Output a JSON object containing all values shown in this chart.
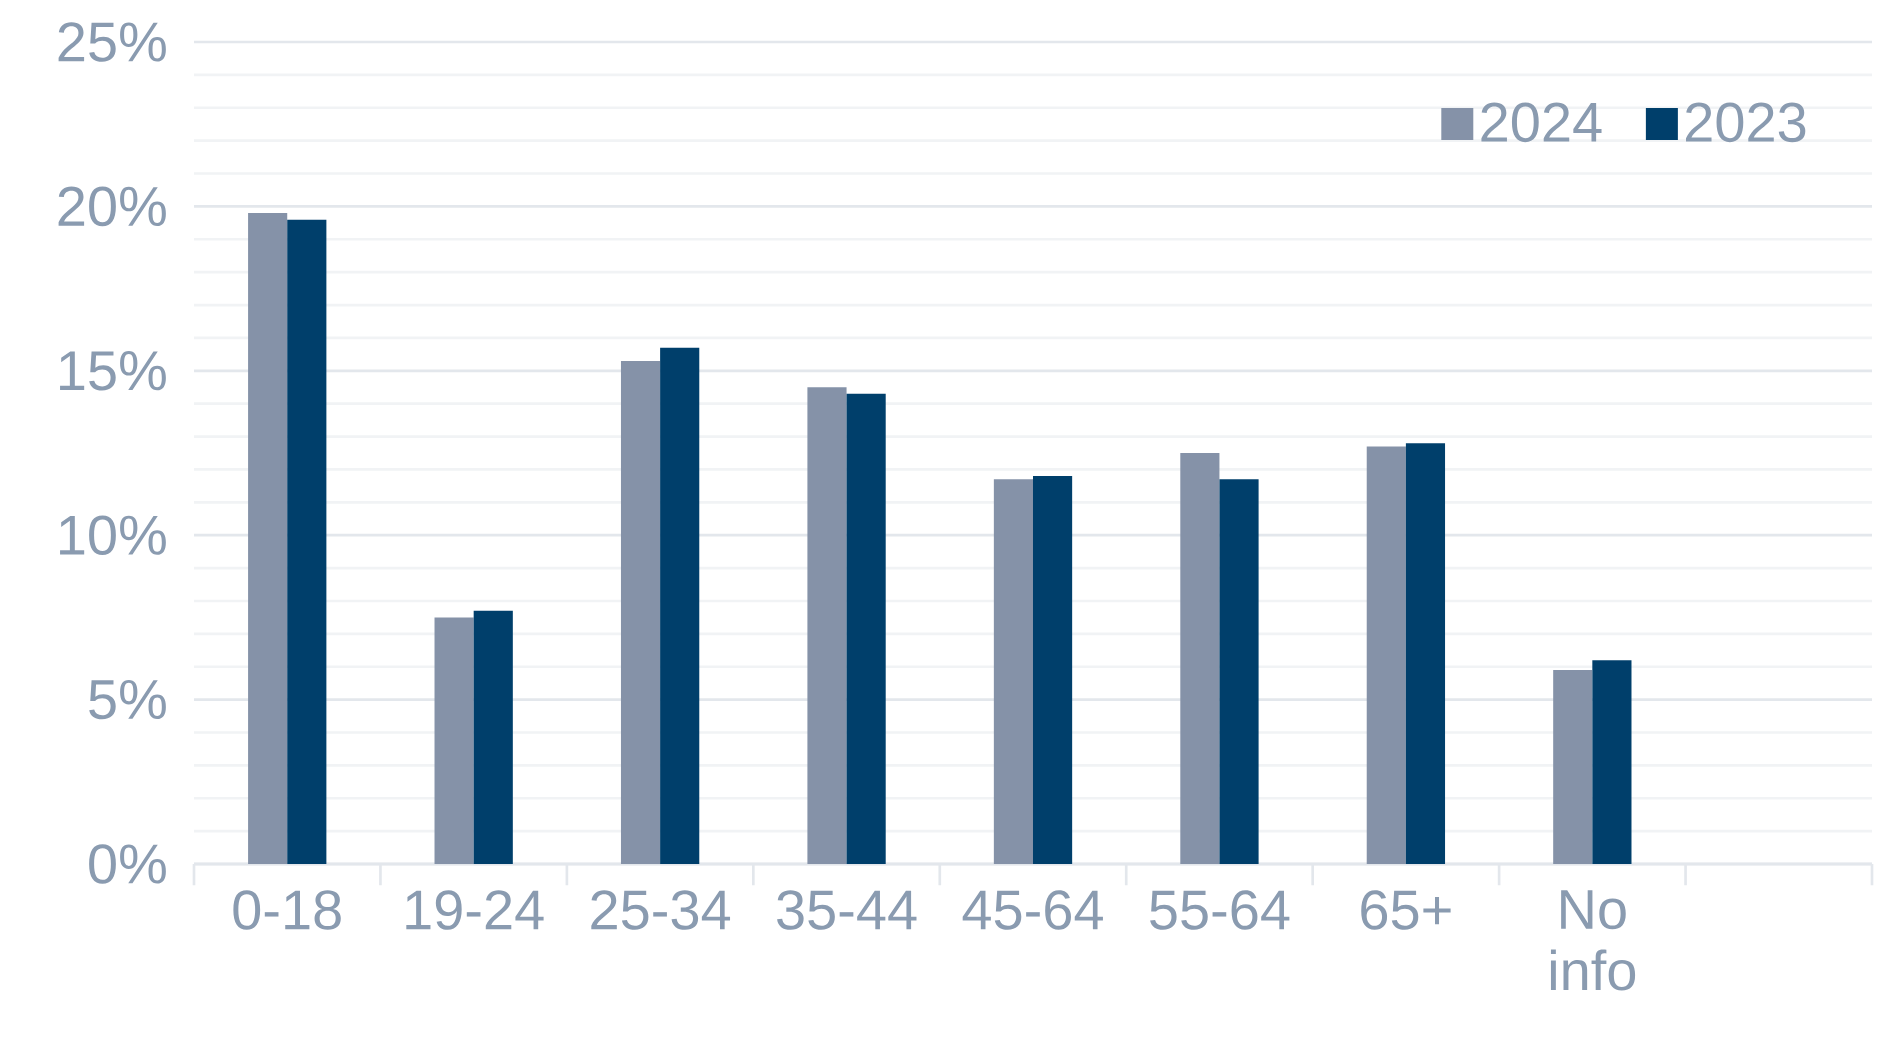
{
  "chart_data": {
    "type": "bar",
    "categories": [
      "0-18",
      "19-24",
      "25-34",
      "35-44",
      "45-64",
      "55-64",
      "65+",
      "No info",
      null
    ],
    "series": [
      {
        "name": "2024",
        "color": "#8592a8",
        "values": [
          19.8,
          7.5,
          15.3,
          14.5,
          11.7,
          12.5,
          12.7,
          5.9,
          null
        ]
      },
      {
        "name": "2023",
        "color": "#003f6b",
        "values": [
          19.6,
          7.7,
          15.7,
          14.3,
          11.8,
          11.7,
          12.8,
          6.2,
          null
        ]
      }
    ],
    "ylim": [
      0,
      25
    ],
    "yticks": [
      {
        "value": 0,
        "label": "0%"
      },
      {
        "value": 5,
        "label": "5%"
      },
      {
        "value": 10,
        "label": "10%"
      },
      {
        "value": 15,
        "label": "15%"
      },
      {
        "value": 20,
        "label": "20%"
      },
      {
        "value": 25,
        "label": "25%"
      }
    ],
    "grid": "y",
    "legend": "top right"
  }
}
